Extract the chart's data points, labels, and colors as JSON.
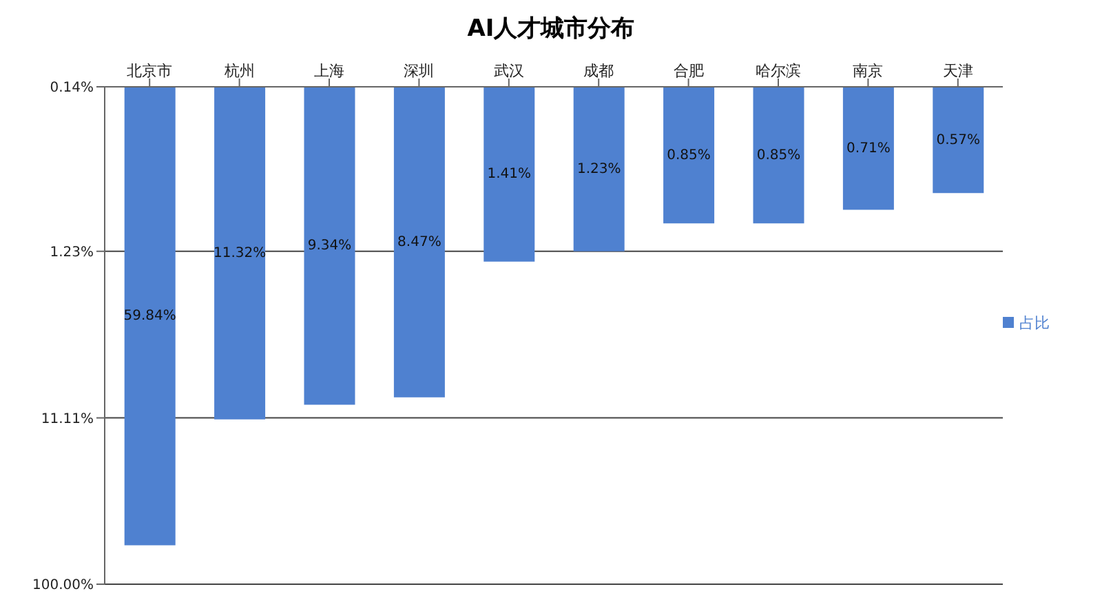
{
  "chart_data": {
    "type": "bar",
    "title": "AI人才城市分布",
    "categories": [
      "北京市",
      "杭州",
      "上海",
      "深圳",
      "武汉",
      "成都",
      "合肥",
      "哈尔滨",
      "南京",
      "天津"
    ],
    "series": [
      {
        "name": "占比",
        "color": "#4f81d0",
        "values": [
          59.84,
          11.32,
          9.34,
          8.47,
          1.41,
          1.23,
          0.85,
          0.85,
          0.71,
          0.57
        ],
        "value_labels": [
          "59.84%",
          "11.32%",
          "9.34%",
          "8.47%",
          "1.41%",
          "1.23%",
          "0.85%",
          "0.85%",
          "0.71%",
          "0.57%"
        ]
      }
    ],
    "log": true,
    "ylim": [
      100,
      0.14
    ],
    "yticks": [
      {
        "value": 0.14,
        "label": "0.14%"
      },
      {
        "value": 1.23,
        "label": "1.23%"
      },
      {
        "value": 11.11,
        "label": "11.11%"
      },
      {
        "value": 100,
        "label": "100.00%"
      }
    ],
    "grid": "y",
    "legend": "right"
  }
}
